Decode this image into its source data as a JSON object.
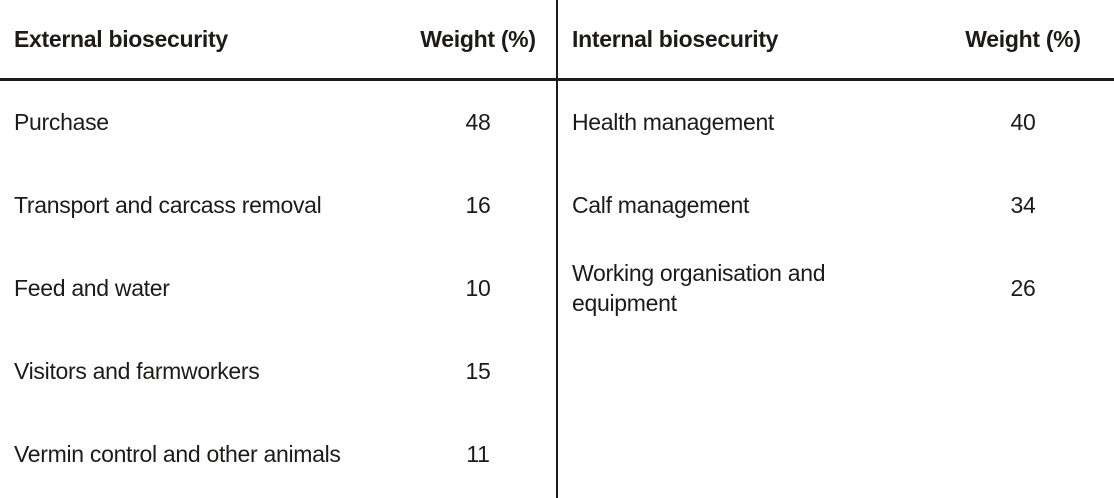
{
  "page": {
    "background": "#ffffff",
    "text_color": "#1c1b1a",
    "rule_color": "#1c1b1a"
  },
  "tables": [
    {
      "name": "external-biosecurity",
      "header": {
        "category": "External biosecurity",
        "weight": "Weight (%)"
      },
      "rows": [
        {
          "label": "Purchase",
          "weight": "48"
        },
        {
          "label": "Transport and carcass removal",
          "weight": "16"
        },
        {
          "label": "Feed and water",
          "weight": "10"
        },
        {
          "label": "Visitors and farmworkers",
          "weight": "15"
        },
        {
          "label": "Vermin control and other animals",
          "weight": "11"
        }
      ]
    },
    {
      "name": "internal-biosecurity",
      "header": {
        "category": "Internal biosecurity",
        "weight": "Weight (%)"
      },
      "rows": [
        {
          "label": "Health management",
          "weight": "40"
        },
        {
          "label": "Calf management",
          "weight": "34"
        },
        {
          "label": "Working organisation and equipment",
          "weight": "26"
        }
      ]
    }
  ]
}
